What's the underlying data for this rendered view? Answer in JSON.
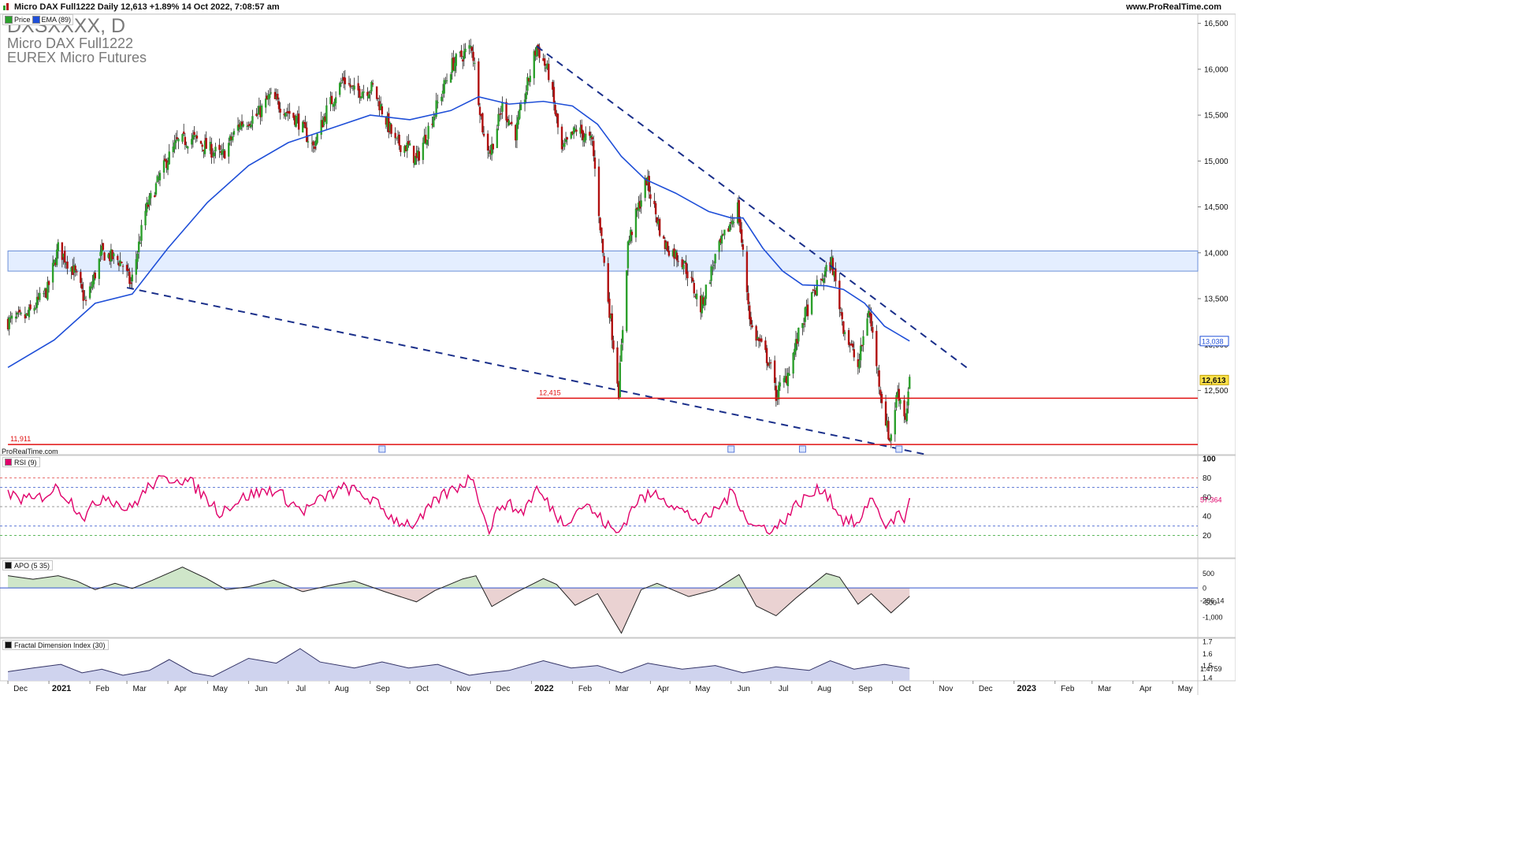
{
  "header": {
    "info": "Micro DAX Full1222 Daily 12,613 +1.89% 14 Oct 2022, 7:08:57 am",
    "site": "www.ProRealTime.com"
  },
  "watermark": {
    "symbol": "DXSXXXX, D",
    "name": "Micro DAX Full1222",
    "exchange": "EUREX Micro Futures"
  },
  "legend": {
    "price": "Price",
    "ema": "EMA (89)"
  },
  "footer_brand": "ProRealTime.com",
  "colors": {
    "up": "#2ca02c",
    "down": "#b01010",
    "ema": "#1f4fd8",
    "trend": "#1a2f8a",
    "support": "#e01010",
    "zone": "#dbe8ff",
    "rsi": "#e0006a",
    "apo_line": "#222222",
    "apo_pos": "#cfe6c9",
    "apo_neg": "#ead2d2",
    "fdi_fill": "#cfd3ee",
    "grid": "#e6e6e6"
  },
  "chart_data": [
    {
      "type": "candlestick",
      "title": "Micro DAX Full1222",
      "x_axis_labels": [
        "Dec",
        "2021",
        "Feb",
        "Mar",
        "Apr",
        "May",
        "Jun",
        "Jul",
        "Aug",
        "Sep",
        "Oct",
        "Nov",
        "Dec",
        "2022",
        "Feb",
        "Mar",
        "Apr",
        "May",
        "Jun",
        "Jul",
        "Aug",
        "Sep",
        "Oct",
        "Nov",
        "Dec",
        "2023",
        "Feb",
        "Mar",
        "Apr",
        "May"
      ],
      "y_ticks": [
        "16,500",
        "16,000",
        "15,500",
        "15,000",
        "14,500",
        "14,000",
        "13,500",
        "13,000",
        "12,500"
      ],
      "ylim": [
        11800,
        16600
      ],
      "last_price": "12,613",
      "ema_label_value": "13,038",
      "close_path": [
        [
          "2020-12-01",
          13250
        ],
        [
          "2020-12-15",
          13300
        ],
        [
          "2020-12-31",
          13600
        ],
        [
          "2021-01-08",
          14050
        ],
        [
          "2021-01-20",
          13800
        ],
        [
          "2021-01-29",
          13450
        ],
        [
          "2021-02-10",
          14000
        ],
        [
          "2021-02-25",
          13900
        ],
        [
          "2021-03-04",
          13650
        ],
        [
          "2021-03-15",
          14450
        ],
        [
          "2021-03-31",
          15000
        ],
        [
          "2021-04-08",
          15200
        ],
        [
          "2021-04-20",
          15250
        ],
        [
          "2021-04-30",
          15150
        ],
        [
          "2021-05-12",
          15050
        ],
        [
          "2021-05-25",
          15400
        ],
        [
          "2021-06-08",
          15500
        ],
        [
          "2021-06-17",
          15700
        ],
        [
          "2021-07-08",
          15450
        ],
        [
          "2021-07-20",
          15150
        ],
        [
          "2021-07-30",
          15550
        ],
        [
          "2021-08-12",
          15900
        ],
        [
          "2021-08-20",
          15750
        ],
        [
          "2021-09-03",
          15800
        ],
        [
          "2021-09-20",
          15200
        ],
        [
          "2021-09-30",
          15150
        ],
        [
          "2021-10-06",
          15000
        ],
        [
          "2021-10-20",
          15550
        ],
        [
          "2021-11-02",
          16050
        ],
        [
          "2021-11-17",
          16250
        ],
        [
          "2021-11-26",
          15250
        ],
        [
          "2021-12-01",
          15100
        ],
        [
          "2021-12-10",
          15600
        ],
        [
          "2021-12-20",
          15300
        ],
        [
          "2022-01-05",
          16250
        ],
        [
          "2022-01-14",
          15950
        ],
        [
          "2022-01-24",
          15100
        ],
        [
          "2022-02-04",
          15350
        ],
        [
          "2022-02-16",
          15200
        ],
        [
          "2022-02-24",
          14000
        ],
        [
          "2022-03-08",
          12500
        ],
        [
          "2022-03-15",
          14100
        ],
        [
          "2022-03-29",
          14800
        ],
        [
          "2022-04-11",
          14100
        ],
        [
          "2022-04-26",
          13900
        ],
        [
          "2022-05-09",
          13400
        ],
        [
          "2022-05-20",
          13950
        ],
        [
          "2022-06-06",
          14500
        ],
        [
          "2022-06-16",
          13200
        ],
        [
          "2022-06-30",
          12800
        ],
        [
          "2022-07-05",
          12450
        ],
        [
          "2022-07-13",
          12650
        ],
        [
          "2022-07-25",
          13250
        ],
        [
          "2022-08-04",
          13600
        ],
        [
          "2022-08-16",
          13900
        ],
        [
          "2022-08-25",
          13200
        ],
        [
          "2022-09-05",
          12750
        ],
        [
          "2022-09-13",
          13400
        ],
        [
          "2022-09-23",
          12400
        ],
        [
          "2022-09-29",
          11950
        ],
        [
          "2022-10-05",
          12500
        ],
        [
          "2022-10-11",
          12200
        ],
        [
          "2022-10-14",
          12613
        ]
      ],
      "ema_path": [
        [
          "2020-12-01",
          12750
        ],
        [
          "2021-01-05",
          13050
        ],
        [
          "2021-02-05",
          13450
        ],
        [
          "2021-03-05",
          13550
        ],
        [
          "2021-04-01",
          14050
        ],
        [
          "2021-05-01",
          14550
        ],
        [
          "2021-06-01",
          14950
        ],
        [
          "2021-07-01",
          15200
        ],
        [
          "2021-08-01",
          15350
        ],
        [
          "2021-09-01",
          15500
        ],
        [
          "2021-10-01",
          15450
        ],
        [
          "2021-11-01",
          15550
        ],
        [
          "2021-11-22",
          15700
        ],
        [
          "2021-12-15",
          15620
        ],
        [
          "2022-01-10",
          15650
        ],
        [
          "2022-02-01",
          15600
        ],
        [
          "2022-02-20",
          15400
        ],
        [
          "2022-03-10",
          15050
        ],
        [
          "2022-03-28",
          14800
        ],
        [
          "2022-04-20",
          14650
        ],
        [
          "2022-05-15",
          14450
        ],
        [
          "2022-06-01",
          14380
        ],
        [
          "2022-06-10",
          14380
        ],
        [
          "2022-06-25",
          14050
        ],
        [
          "2022-07-10",
          13800
        ],
        [
          "2022-07-25",
          13650
        ],
        [
          "2022-08-12",
          13640
        ],
        [
          "2022-08-25",
          13600
        ],
        [
          "2022-09-10",
          13450
        ],
        [
          "2022-09-25",
          13200
        ],
        [
          "2022-10-14",
          13038
        ]
      ],
      "support_levels": [
        {
          "label": "12,415",
          "value": 12415,
          "from": "2022-01-05"
        },
        {
          "label": "11,911",
          "value": 11911,
          "from": "2020-12-01"
        }
      ],
      "zone": {
        "low": 13800,
        "high": 14020,
        "from": "2020-12-01",
        "to": "2023-05-20"
      },
      "trendlines": [
        {
          "from": [
            "2021-03-01",
            13620
          ],
          "to": [
            "2022-10-27",
            11800
          ]
        },
        {
          "from": [
            "2022-01-05",
            16250
          ],
          "to": [
            "2022-11-28",
            12730
          ]
        }
      ],
      "event_markers": [
        "2021-09-10",
        "2022-06-01",
        "2022-07-25",
        "2022-10-06"
      ]
    },
    {
      "type": "line",
      "title": "RSI (9)",
      "ylim": [
        0,
        100
      ],
      "y_ticks": [
        "100",
        "80",
        "60",
        "40",
        "20"
      ],
      "levels": [
        80,
        70,
        50,
        30,
        20
      ],
      "last_value": "57.364",
      "path": [
        [
          "2020-12-01",
          62
        ],
        [
          "2020-12-20",
          56
        ],
        [
          "2021-01-08",
          70
        ],
        [
          "2021-01-28",
          40
        ],
        [
          "2021-02-12",
          63
        ],
        [
          "2021-03-02",
          46
        ],
        [
          "2021-03-20",
          74
        ],
        [
          "2021-04-08",
          81
        ],
        [
          "2021-04-20",
          73
        ],
        [
          "2021-05-10",
          45
        ],
        [
          "2021-06-01",
          62
        ],
        [
          "2021-06-20",
          68
        ],
        [
          "2021-07-12",
          45
        ],
        [
          "2021-07-30",
          61
        ],
        [
          "2021-08-14",
          70
        ],
        [
          "2021-09-01",
          58
        ],
        [
          "2021-09-20",
          36
        ],
        [
          "2021-10-06",
          31
        ],
        [
          "2021-10-22",
          58
        ],
        [
          "2021-11-10",
          74
        ],
        [
          "2021-11-18",
          82
        ],
        [
          "2021-11-29",
          24
        ],
        [
          "2021-12-10",
          55
        ],
        [
          "2021-12-25",
          44
        ],
        [
          "2022-01-05",
          68
        ],
        [
          "2022-01-25",
          33
        ],
        [
          "2022-02-10",
          53
        ],
        [
          "2022-03-07",
          21
        ],
        [
          "2022-03-22",
          57
        ],
        [
          "2022-04-07",
          64
        ],
        [
          "2022-04-25",
          45
        ],
        [
          "2022-05-10",
          33
        ],
        [
          "2022-05-25",
          53
        ],
        [
          "2022-06-03",
          66
        ],
        [
          "2022-06-16",
          30
        ],
        [
          "2022-07-05",
          27
        ],
        [
          "2022-07-22",
          54
        ],
        [
          "2022-08-10",
          70
        ],
        [
          "2022-08-24",
          37
        ],
        [
          "2022-09-07",
          31
        ],
        [
          "2022-09-14",
          62
        ],
        [
          "2022-09-28",
          27
        ],
        [
          "2022-10-05",
          44
        ],
        [
          "2022-10-11",
          36
        ],
        [
          "2022-10-14",
          57.364
        ]
      ]
    },
    {
      "type": "area",
      "title": "APO (5 35)",
      "ylim": [
        -1600,
        900
      ],
      "y_ticks": [
        "500",
        "0",
        "-500",
        "-1,000"
      ],
      "last_value": "-286.14",
      "path": [
        [
          "2020-12-01",
          420
        ],
        [
          "2020-12-20",
          300
        ],
        [
          "2021-01-08",
          420
        ],
        [
          "2021-01-22",
          240
        ],
        [
          "2021-02-05",
          -60
        ],
        [
          "2021-02-20",
          160
        ],
        [
          "2021-03-05",
          -20
        ],
        [
          "2021-03-20",
          260
        ],
        [
          "2021-04-12",
          720
        ],
        [
          "2021-04-30",
          330
        ],
        [
          "2021-05-15",
          -60
        ],
        [
          "2021-06-01",
          40
        ],
        [
          "2021-06-20",
          270
        ],
        [
          "2021-07-12",
          -130
        ],
        [
          "2021-08-01",
          80
        ],
        [
          "2021-08-20",
          240
        ],
        [
          "2021-09-12",
          -130
        ],
        [
          "2021-10-06",
          -480
        ],
        [
          "2021-10-20",
          -90
        ],
        [
          "2021-11-10",
          310
        ],
        [
          "2021-11-20",
          420
        ],
        [
          "2021-12-02",
          -640
        ],
        [
          "2021-12-20",
          -160
        ],
        [
          "2022-01-10",
          320
        ],
        [
          "2022-01-20",
          120
        ],
        [
          "2022-02-03",
          -600
        ],
        [
          "2022-02-20",
          -200
        ],
        [
          "2022-03-10",
          -1560
        ],
        [
          "2022-03-25",
          -60
        ],
        [
          "2022-04-06",
          160
        ],
        [
          "2022-04-30",
          -300
        ],
        [
          "2022-05-20",
          -60
        ],
        [
          "2022-06-07",
          460
        ],
        [
          "2022-06-20",
          -620
        ],
        [
          "2022-07-05",
          -960
        ],
        [
          "2022-07-20",
          -350
        ],
        [
          "2022-08-12",
          500
        ],
        [
          "2022-08-22",
          370
        ],
        [
          "2022-09-05",
          -560
        ],
        [
          "2022-09-15",
          -200
        ],
        [
          "2022-09-30",
          -860
        ],
        [
          "2022-10-14",
          -286
        ]
      ]
    },
    {
      "type": "area",
      "title": "Fractal Dimension Index (30)",
      "ylim": [
        1.4,
        1.7
      ],
      "y_ticks": [
        "1.7",
        "1.6",
        "1.5",
        "1.4"
      ],
      "last_value": "1.4759",
      "path": [
        [
          "2020-12-01",
          1.45
        ],
        [
          "2020-12-20",
          1.48
        ],
        [
          "2021-01-10",
          1.51
        ],
        [
          "2021-01-26",
          1.44
        ],
        [
          "2021-02-10",
          1.47
        ],
        [
          "2021-02-26",
          1.42
        ],
        [
          "2021-03-18",
          1.46
        ],
        [
          "2021-04-02",
          1.55
        ],
        [
          "2021-04-20",
          1.44
        ],
        [
          "2021-05-05",
          1.41
        ],
        [
          "2021-06-01",
          1.56
        ],
        [
          "2021-06-22",
          1.52
        ],
        [
          "2021-07-10",
          1.64
        ],
        [
          "2021-07-25",
          1.53
        ],
        [
          "2021-08-20",
          1.48
        ],
        [
          "2021-09-10",
          1.53
        ],
        [
          "2021-09-30",
          1.48
        ],
        [
          "2021-10-22",
          1.51
        ],
        [
          "2021-11-15",
          1.42
        ],
        [
          "2021-11-28",
          1.44
        ],
        [
          "2021-12-15",
          1.46
        ],
        [
          "2022-01-10",
          1.54
        ],
        [
          "2022-01-31",
          1.48
        ],
        [
          "2022-02-20",
          1.5
        ],
        [
          "2022-03-10",
          1.44
        ],
        [
          "2022-03-30",
          1.52
        ],
        [
          "2022-04-25",
          1.47
        ],
        [
          "2022-05-20",
          1.5
        ],
        [
          "2022-06-10",
          1.44
        ],
        [
          "2022-07-05",
          1.49
        ],
        [
          "2022-07-30",
          1.46
        ],
        [
          "2022-08-15",
          1.54
        ],
        [
          "2022-09-02",
          1.47
        ],
        [
          "2022-09-25",
          1.51
        ],
        [
          "2022-10-14",
          1.476
        ]
      ]
    }
  ]
}
